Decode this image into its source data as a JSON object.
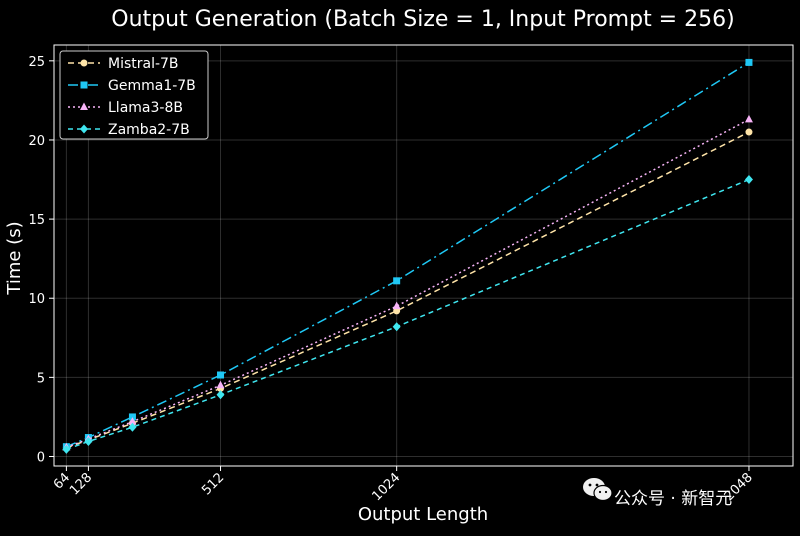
{
  "chart_data": {
    "type": "line",
    "title": "Output Generation (Batch Size = 1, Input Prompt = 256)",
    "xlabel": "Output Length",
    "ylabel": "Time (s)",
    "x": [
      64,
      128,
      256,
      512,
      1024,
      2048
    ],
    "x_tick_values": [
      64,
      128,
      512,
      1024,
      2048
    ],
    "x_tick_labels": [
      "64",
      "128",
      "512",
      "1024",
      "2048"
    ],
    "y_tick_values": [
      0,
      5,
      10,
      15,
      20,
      25
    ],
    "y_tick_labels": [
      "0",
      "5",
      "10",
      "15",
      "20",
      "25"
    ],
    "xlim": [
      28,
      2176
    ],
    "ylim": [
      -0.6,
      26.0
    ],
    "grid": true,
    "legend_position": "top-left",
    "series": [
      {
        "name": "Mistral-7B",
        "values": [
          0.55,
          1.05,
          2.1,
          4.3,
          9.2,
          20.5
        ],
        "color": "#ffe4a8",
        "marker": "circle",
        "dash": "6,4"
      },
      {
        "name": "Gemma1-7B",
        "values": [
          0.62,
          1.2,
          2.5,
          5.15,
          11.1,
          24.9
        ],
        "color": "#1fc8f5",
        "marker": "square",
        "dash": "10,4,2,4"
      },
      {
        "name": "Llama3-8B",
        "values": [
          0.58,
          1.1,
          2.2,
          4.5,
          9.5,
          21.3
        ],
        "color": "#f7b4f7",
        "marker": "triangle",
        "dash": "2,3"
      },
      {
        "name": "Zamba2-7B",
        "values": [
          0.45,
          0.95,
          1.85,
          3.9,
          8.2,
          17.5
        ],
        "color": "#3fe6f0",
        "marker": "diamond",
        "dash": "5,4"
      }
    ]
  },
  "watermark": {
    "text": "公众号 · 新智元",
    "icon": "wechat-icon"
  }
}
